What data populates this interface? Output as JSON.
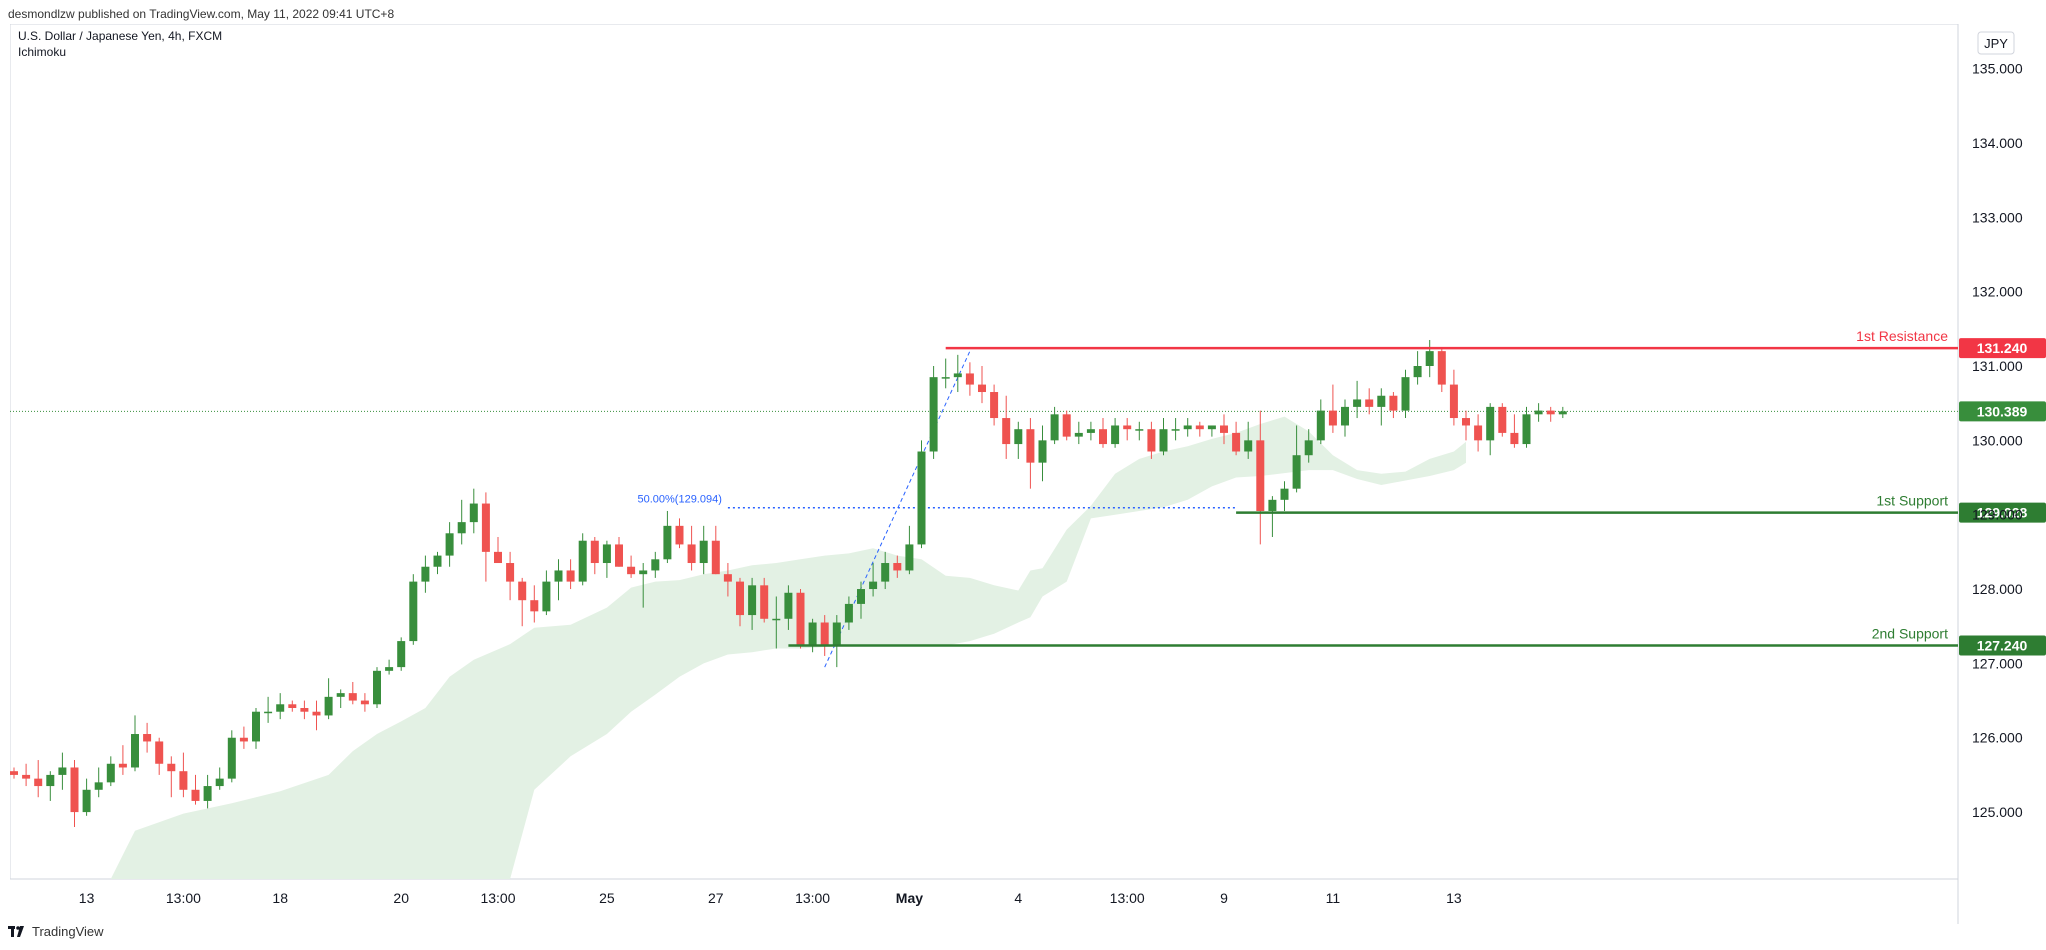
{
  "header": {
    "published": "desmondlzw published on TradingView.com, May 11, 2022 09:41 UTC+8",
    "symbol": "U.S. Dollar / Japanese Yen, 4h, FXCM",
    "indicator": "Ichimoku",
    "currency_button": "JPY"
  },
  "footer": {
    "brand": "TradingView",
    "logo_icon": "tradingview-logo-icon"
  },
  "colors": {
    "up": "#388e3c",
    "down": "#ef5350",
    "resistance": "#f23645",
    "support": "#2e7d32",
    "cloud": "#e3f1e4",
    "fib": "#2962ff",
    "last_price": "#388e3c"
  },
  "chart_data": {
    "type": "candlestick",
    "ylim": [
      124.1,
      135.6
    ],
    "yticks": [
      "125.000",
      "126.000",
      "127.000",
      "128.000",
      "129.000",
      "130.000",
      "131.000",
      "132.000",
      "133.000",
      "134.000",
      "135.000"
    ],
    "xticks": [
      {
        "label": "13",
        "bar": 6,
        "bold": false
      },
      {
        "label": "13:00",
        "bar": 14,
        "bold": false
      },
      {
        "label": "18",
        "bar": 22,
        "bold": false
      },
      {
        "label": "20",
        "bar": 32,
        "bold": false
      },
      {
        "label": "13:00",
        "bar": 40,
        "bold": false
      },
      {
        "label": "25",
        "bar": 49,
        "bold": false
      },
      {
        "label": "27",
        "bar": 58,
        "bold": false
      },
      {
        "label": "13:00",
        "bar": 66,
        "bold": false
      },
      {
        "label": "May",
        "bar": 74,
        "bold": true
      },
      {
        "label": "4",
        "bar": 83,
        "bold": false
      },
      {
        "label": "13:00",
        "bar": 92,
        "bold": false
      },
      {
        "label": "9",
        "bar": 100,
        "bold": false
      },
      {
        "label": "11",
        "bar": 109,
        "bold": false
      },
      {
        "label": "13",
        "bar": 119,
        "bold": false
      }
    ],
    "candles": [
      [
        125.55,
        125.6,
        125.45,
        125.5
      ],
      [
        125.5,
        125.65,
        125.35,
        125.45
      ],
      [
        125.45,
        125.7,
        125.2,
        125.35
      ],
      [
        125.35,
        125.55,
        125.15,
        125.5
      ],
      [
        125.5,
        125.8,
        125.3,
        125.6
      ],
      [
        125.6,
        125.7,
        124.8,
        125.0
      ],
      [
        125.0,
        125.45,
        124.95,
        125.3
      ],
      [
        125.3,
        125.6,
        125.2,
        125.4
      ],
      [
        125.4,
        125.75,
        125.35,
        125.65
      ],
      [
        125.65,
        125.9,
        125.5,
        125.6
      ],
      [
        125.6,
        126.3,
        125.55,
        126.05
      ],
      [
        126.05,
        126.2,
        125.8,
        125.95
      ],
      [
        125.95,
        126.0,
        125.5,
        125.65
      ],
      [
        125.65,
        125.75,
        125.2,
        125.55
      ],
      [
        125.55,
        125.8,
        125.2,
        125.3
      ],
      [
        125.3,
        125.5,
        125.1,
        125.15
      ],
      [
        125.15,
        125.5,
        125.05,
        125.35
      ],
      [
        125.35,
        125.6,
        125.3,
        125.45
      ],
      [
        125.45,
        126.1,
        125.4,
        126.0
      ],
      [
        126.0,
        126.15,
        125.85,
        125.95
      ],
      [
        125.95,
        126.4,
        125.85,
        126.35
      ],
      [
        126.35,
        126.55,
        126.2,
        126.35
      ],
      [
        126.35,
        126.6,
        126.25,
        126.45
      ],
      [
        126.45,
        126.5,
        126.35,
        126.4
      ],
      [
        126.4,
        126.5,
        126.25,
        126.35
      ],
      [
        126.35,
        126.5,
        126.1,
        126.3
      ],
      [
        126.3,
        126.8,
        126.25,
        126.55
      ],
      [
        126.55,
        126.65,
        126.4,
        126.6
      ],
      [
        126.6,
        126.75,
        126.45,
        126.5
      ],
      [
        126.5,
        126.6,
        126.35,
        126.45
      ],
      [
        126.45,
        126.95,
        126.4,
        126.9
      ],
      [
        126.9,
        127.05,
        126.85,
        126.95
      ],
      [
        126.95,
        127.35,
        126.9,
        127.3
      ],
      [
        127.3,
        128.2,
        127.25,
        128.1
      ],
      [
        128.1,
        128.45,
        127.95,
        128.3
      ],
      [
        128.3,
        128.5,
        128.2,
        128.45
      ],
      [
        128.45,
        128.9,
        128.3,
        128.75
      ],
      [
        128.75,
        129.2,
        128.6,
        128.9
      ],
      [
        128.9,
        129.35,
        128.75,
        129.15
      ],
      [
        129.15,
        129.3,
        128.1,
        128.5
      ],
      [
        128.5,
        128.7,
        128.35,
        128.35
      ],
      [
        128.35,
        128.5,
        127.85,
        128.1
      ],
      [
        128.1,
        128.15,
        127.5,
        127.85
      ],
      [
        127.85,
        128.05,
        127.55,
        127.7
      ],
      [
        127.7,
        128.25,
        127.65,
        128.1
      ],
      [
        128.1,
        128.4,
        127.85,
        128.25
      ],
      [
        128.25,
        128.4,
        128.0,
        128.1
      ],
      [
        128.1,
        128.75,
        128.05,
        128.65
      ],
      [
        128.65,
        128.7,
        128.2,
        128.35
      ],
      [
        128.35,
        128.65,
        128.15,
        128.6
      ],
      [
        128.6,
        128.7,
        128.3,
        128.3
      ],
      [
        128.3,
        128.45,
        128.15,
        128.2
      ],
      [
        128.2,
        128.35,
        127.75,
        128.25
      ],
      [
        128.25,
        128.5,
        128.15,
        128.4
      ],
      [
        128.4,
        129.05,
        128.35,
        128.85
      ],
      [
        128.85,
        128.95,
        128.55,
        128.6
      ],
      [
        128.6,
        128.85,
        128.25,
        128.35
      ],
      [
        128.35,
        128.85,
        128.2,
        128.65
      ],
      [
        128.65,
        128.85,
        128.2,
        128.2
      ],
      [
        128.2,
        128.35,
        127.9,
        128.1
      ],
      [
        128.1,
        128.15,
        127.5,
        127.65
      ],
      [
        127.65,
        128.15,
        127.45,
        128.05
      ],
      [
        128.05,
        128.15,
        127.55,
        127.6
      ],
      [
        127.6,
        127.9,
        127.2,
        127.6
      ],
      [
        127.6,
        128.05,
        127.45,
        127.95
      ],
      [
        127.95,
        128.0,
        127.2,
        127.25
      ],
      [
        127.25,
        127.6,
        127.15,
        127.55
      ],
      [
        127.55,
        127.65,
        127.1,
        127.25
      ],
      [
        127.25,
        127.65,
        126.95,
        127.55
      ],
      [
        127.55,
        127.9,
        127.45,
        127.8
      ],
      [
        127.8,
        128.1,
        127.6,
        128.0
      ],
      [
        128.0,
        128.35,
        127.9,
        128.1
      ],
      [
        128.1,
        128.5,
        128.0,
        128.35
      ],
      [
        128.35,
        128.45,
        128.15,
        128.25
      ],
      [
        128.25,
        128.85,
        128.2,
        128.6
      ],
      [
        128.6,
        130.0,
        128.55,
        129.85
      ],
      [
        129.85,
        131.0,
        129.75,
        130.85
      ],
      [
        130.85,
        131.1,
        130.7,
        130.85
      ],
      [
        130.85,
        131.15,
        130.65,
        130.9
      ],
      [
        130.9,
        131.05,
        130.6,
        130.75
      ],
      [
        130.75,
        131.0,
        130.5,
        130.65
      ],
      [
        130.65,
        130.75,
        130.2,
        130.3
      ],
      [
        130.3,
        130.6,
        129.75,
        129.95
      ],
      [
        129.95,
        130.25,
        129.75,
        130.15
      ],
      [
        130.15,
        130.3,
        129.35,
        129.7
      ],
      [
        129.7,
        130.2,
        129.45,
        130.0
      ],
      [
        130.0,
        130.45,
        129.95,
        130.35
      ],
      [
        130.35,
        130.4,
        130.0,
        130.05
      ],
      [
        130.05,
        130.25,
        129.95,
        130.1
      ],
      [
        130.1,
        130.25,
        130.0,
        130.15
      ],
      [
        130.15,
        130.3,
        129.9,
        129.95
      ],
      [
        129.95,
        130.3,
        129.9,
        130.2
      ],
      [
        130.2,
        130.3,
        130.0,
        130.15
      ],
      [
        130.15,
        130.25,
        130.0,
        130.15
      ],
      [
        130.15,
        130.25,
        129.75,
        129.85
      ],
      [
        129.85,
        130.3,
        129.8,
        130.15
      ],
      [
        130.15,
        130.3,
        130.0,
        130.15
      ],
      [
        130.15,
        130.3,
        130.05,
        130.2
      ],
      [
        130.2,
        130.25,
        130.05,
        130.15
      ],
      [
        130.15,
        130.2,
        130.05,
        130.2
      ],
      [
        130.2,
        130.35,
        129.95,
        130.1
      ],
      [
        130.1,
        130.25,
        129.8,
        129.85
      ],
      [
        129.85,
        130.25,
        129.75,
        130.0
      ],
      [
        130.0,
        130.4,
        128.6,
        129.05
      ],
      [
        129.05,
        129.25,
        128.7,
        129.2
      ],
      [
        129.2,
        129.45,
        129.05,
        129.35
      ],
      [
        129.35,
        130.2,
        129.3,
        129.8
      ],
      [
        129.8,
        130.15,
        129.7,
        130.0
      ],
      [
        130.0,
        130.55,
        129.95,
        130.4
      ],
      [
        130.4,
        130.75,
        130.1,
        130.2
      ],
      [
        130.2,
        130.55,
        130.05,
        130.45
      ],
      [
        130.45,
        130.8,
        130.3,
        130.55
      ],
      [
        130.55,
        130.7,
        130.35,
        130.45
      ],
      [
        130.45,
        130.7,
        130.2,
        130.6
      ],
      [
        130.6,
        130.65,
        130.3,
        130.4
      ],
      [
        130.4,
        130.95,
        130.3,
        130.85
      ],
      [
        130.85,
        131.2,
        130.75,
        131.0
      ],
      [
        131.0,
        131.35,
        130.85,
        131.2
      ],
      [
        131.2,
        131.25,
        130.65,
        130.75
      ],
      [
        130.75,
        130.95,
        130.2,
        130.3
      ],
      [
        130.3,
        130.4,
        130.0,
        130.2
      ],
      [
        130.2,
        130.35,
        129.85,
        130.0
      ],
      [
        130.0,
        130.5,
        129.8,
        130.45
      ],
      [
        130.45,
        130.5,
        130.05,
        130.1
      ],
      [
        130.1,
        130.35,
        129.9,
        129.95
      ],
      [
        129.95,
        130.45,
        129.9,
        130.35
      ],
      [
        130.35,
        130.5,
        130.25,
        130.4
      ],
      [
        130.4,
        130.45,
        130.25,
        130.35
      ],
      [
        130.35,
        130.45,
        130.3,
        130.39
      ]
    ],
    "cloud": [
      [
        8,
        124.1,
        124.1
      ],
      [
        10,
        124.1,
        124.75
      ],
      [
        14,
        124.1,
        124.98
      ],
      [
        18,
        124.1,
        125.12
      ],
      [
        22,
        124.1,
        125.28
      ],
      [
        26,
        124.1,
        125.5
      ],
      [
        28,
        124.1,
        125.82
      ],
      [
        30,
        124.1,
        126.05
      ],
      [
        32,
        124.1,
        126.22
      ],
      [
        34,
        124.1,
        126.4
      ],
      [
        36,
        124.1,
        126.82
      ],
      [
        38,
        124.1,
        127.05
      ],
      [
        41,
        124.1,
        127.26
      ],
      [
        43,
        125.3,
        127.48
      ],
      [
        46,
        125.75,
        127.52
      ],
      [
        49,
        126.05,
        127.75
      ],
      [
        51,
        126.35,
        128.02
      ],
      [
        53,
        126.58,
        128.1
      ],
      [
        55,
        126.82,
        128.12
      ],
      [
        57,
        127.0,
        128.2
      ],
      [
        59,
        127.12,
        128.25
      ],
      [
        61,
        127.15,
        128.32
      ],
      [
        63,
        127.2,
        128.35
      ],
      [
        65,
        127.2,
        128.4
      ],
      [
        67,
        127.22,
        128.45
      ],
      [
        69,
        127.24,
        128.48
      ],
      [
        71,
        127.24,
        128.55
      ],
      [
        73,
        127.24,
        128.45
      ],
      [
        75,
        127.24,
        128.4
      ],
      [
        77,
        127.24,
        128.18
      ],
      [
        79,
        127.3,
        128.15
      ],
      [
        81,
        127.4,
        128.05
      ],
      [
        83,
        127.55,
        127.98
      ],
      [
        84,
        127.62,
        128.25
      ],
      [
        85,
        127.9,
        128.28
      ],
      [
        87,
        128.1,
        128.8
      ],
      [
        89,
        128.95,
        129.12
      ],
      [
        91,
        129.0,
        129.55
      ],
      [
        93,
        129.05,
        129.75
      ],
      [
        95,
        129.1,
        129.85
      ],
      [
        97,
        129.2,
        129.92
      ],
      [
        99,
        129.38,
        130.02
      ],
      [
        101,
        129.5,
        130.1
      ],
      [
        103,
        129.52,
        130.22
      ],
      [
        105,
        129.56,
        130.32
      ],
      [
        107,
        129.6,
        130.12
      ],
      [
        109,
        129.6,
        129.8
      ],
      [
        111,
        129.48,
        129.6
      ],
      [
        113,
        129.4,
        129.55
      ],
      [
        115,
        129.46,
        129.58
      ],
      [
        117,
        129.52,
        129.75
      ],
      [
        119,
        129.6,
        129.85
      ],
      [
        120,
        129.7,
        129.98
      ]
    ],
    "levels": [
      {
        "label": "1st Resistance",
        "value": 131.24,
        "value_label": "131.240",
        "kind": "resistance",
        "start_bar": 77
      },
      {
        "label": "1st Support",
        "value": 129.028,
        "value_label": "129.028",
        "kind": "support",
        "start_bar": 101
      },
      {
        "label": "2nd Support",
        "value": 127.24,
        "value_label": "127.240",
        "kind": "support",
        "start_bar": 64
      }
    ],
    "last_price": {
      "value": 130.389,
      "label": "130.389"
    },
    "fib": {
      "label": "50.00%(129.094)",
      "value": 129.094,
      "start_bar": 59,
      "end_bar": 101,
      "trend_from": [
        67,
        126.95
      ],
      "trend_to": [
        79,
        131.2
      ]
    }
  }
}
